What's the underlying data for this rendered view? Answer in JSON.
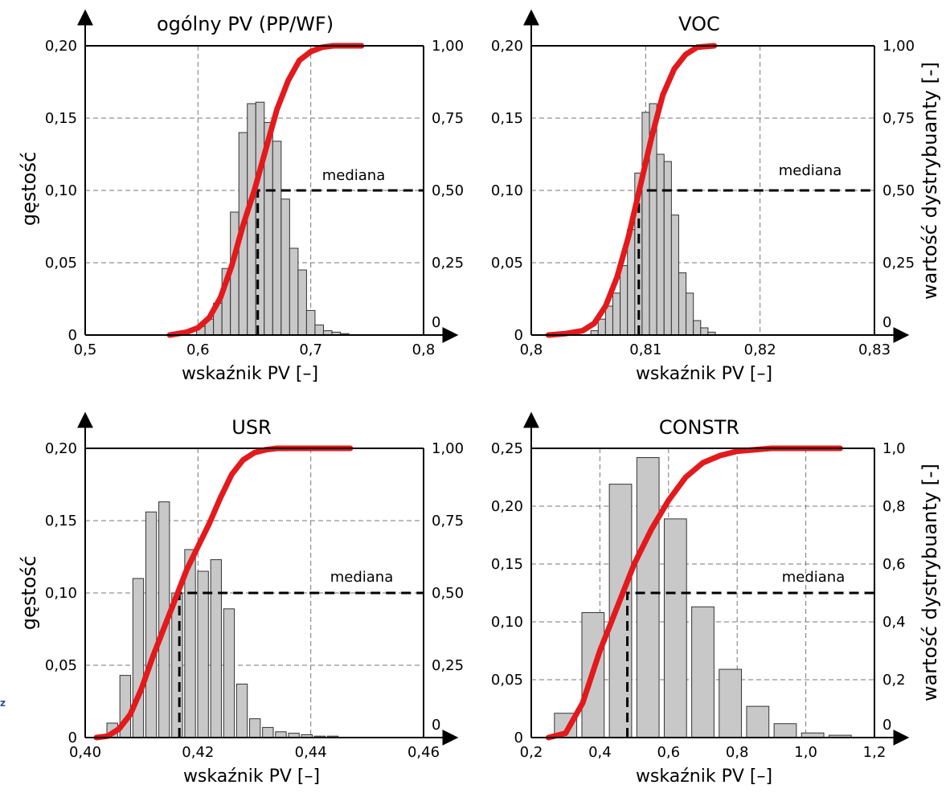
{
  "chart_data": [
    {
      "type": "bar",
      "title": "ogólny PV (PP/WF)",
      "xlabel": "wskaźnik PV [–]",
      "ylabel": "gęstość",
      "y2label": "",
      "xlim": [
        0.5,
        0.8
      ],
      "ylim": [
        0,
        0.2
      ],
      "y2lim": [
        0,
        1
      ],
      "xticks": [
        0.5,
        0.6,
        0.7,
        0.8
      ],
      "xtick_labels": [
        "0,5",
        "0,6",
        "0,7",
        "0,8"
      ],
      "yticks": [
        0,
        0.05,
        0.1,
        0.15,
        0.2
      ],
      "ytick_labels": [
        "0",
        "0,05",
        "0,10",
        "0,15",
        "0,20"
      ],
      "y2ticks": [
        0,
        0.25,
        0.5,
        0.75,
        1.0
      ],
      "y2tick_labels": [
        "0",
        "0,25",
        "0,50",
        "0,75",
        "1,00"
      ],
      "bar_width": 0.0075,
      "bar_color": "#c8c8c8",
      "bars": {
        "x": [
          0.6025,
          0.61,
          0.6175,
          0.625,
          0.6325,
          0.64,
          0.6475,
          0.655,
          0.6625,
          0.67,
          0.6775,
          0.685,
          0.6925,
          0.7,
          0.7075,
          0.715,
          0.7225,
          0.73
        ],
        "density": [
          0.006,
          0.011,
          0.022,
          0.046,
          0.085,
          0.14,
          0.16,
          0.161,
          0.147,
          0.134,
          0.094,
          0.06,
          0.045,
          0.017,
          0.007,
          0.003,
          0.002,
          0.001
        ]
      },
      "cdf_color": "#e3191c",
      "cdf": {
        "x": [
          0.575,
          0.59,
          0.6,
          0.61,
          0.62,
          0.63,
          0.64,
          0.65,
          0.66,
          0.67,
          0.68,
          0.69,
          0.7,
          0.71,
          0.72,
          0.73,
          0.745
        ],
        "y": [
          0.0,
          0.01,
          0.025,
          0.06,
          0.13,
          0.24,
          0.38,
          0.5,
          0.64,
          0.78,
          0.88,
          0.95,
          0.98,
          0.995,
          1.0,
          1.0,
          1.0
        ]
      },
      "median_value": 0.653,
      "median_label": "mediana"
    },
    {
      "type": "bar",
      "title": "VOC",
      "xlabel": "wskaźnik PV [–]",
      "ylabel": "",
      "y2label": "wartość dystrybuanty [-]",
      "xlim": [
        0.8,
        0.83
      ],
      "ylim": [
        0,
        0.2
      ],
      "y2lim": [
        0,
        1
      ],
      "xticks": [
        0.8,
        0.81,
        0.82,
        0.83
      ],
      "xtick_labels": [
        "0,8",
        "0,81",
        "0,82",
        "0,83"
      ],
      "yticks": [
        0,
        0.05,
        0.1,
        0.15,
        0.2
      ],
      "ytick_labels": [
        "0",
        "0,05",
        "0,10",
        "0,15",
        "0,20"
      ],
      "y2ticks": [
        0,
        0.25,
        0.5,
        0.75,
        1.0
      ],
      "y2tick_labels": [
        "0",
        "0,25",
        "0,50",
        "0,75",
        "1,00"
      ],
      "bar_width": 0.00064,
      "bar_color": "#c8c8c8",
      "bars": {
        "x": [
          0.80553,
          0.80617,
          0.80681,
          0.80745,
          0.80809,
          0.80873,
          0.80937,
          0.81001,
          0.81065,
          0.81129,
          0.81193,
          0.81257,
          0.81321,
          0.81385,
          0.81449,
          0.81513,
          0.81577
        ],
        "density": [
          0.003,
          0.011,
          0.02,
          0.029,
          0.048,
          0.073,
          0.112,
          0.154,
          0.16,
          0.125,
          0.12,
          0.083,
          0.043,
          0.029,
          0.01,
          0.005,
          0.002
        ]
      },
      "cdf_color": "#e3191c",
      "cdf": {
        "x": [
          0.8015,
          0.803,
          0.8045,
          0.8055,
          0.8065,
          0.8075,
          0.8085,
          0.8095,
          0.8105,
          0.8115,
          0.8125,
          0.8135,
          0.8145,
          0.816
        ],
        "y": [
          0.0,
          0.005,
          0.015,
          0.04,
          0.1,
          0.2,
          0.34,
          0.51,
          0.68,
          0.83,
          0.92,
          0.97,
          0.995,
          1.0
        ]
      },
      "median_value": 0.8094,
      "median_label": "mediana"
    },
    {
      "type": "bar",
      "title": "USR",
      "xlabel": "wskaźnik PV [–]",
      "ylabel": "gęstość",
      "y2label": "",
      "xlim": [
        0.4,
        0.46
      ],
      "ylim": [
        0,
        0.2
      ],
      "y2lim": [
        0,
        1
      ],
      "xticks": [
        0.4,
        0.42,
        0.44,
        0.46
      ],
      "xtick_labels": [
        "0,40",
        "0,42",
        "0,44",
        "0,46"
      ],
      "yticks": [
        0,
        0.05,
        0.1,
        0.15,
        0.2
      ],
      "ytick_labels": [
        "0",
        "0,05",
        "0,10",
        "0,15",
        "0,20"
      ],
      "y2ticks": [
        0,
        0.25,
        0.5,
        0.75,
        1.0
      ],
      "y2tick_labels": [
        "0",
        "0,25",
        "0,50",
        "0,75",
        "1,00"
      ],
      "bar_width": 0.0019,
      "bar_color": "#c8c8c8",
      "bars": {
        "x": [
          0.4048,
          0.4071,
          0.4094,
          0.4117,
          0.414,
          0.4163,
          0.4186,
          0.4209,
          0.4232,
          0.4255,
          0.4278,
          0.4301,
          0.4324,
          0.4347,
          0.437,
          0.4393,
          0.4416,
          0.4439
        ],
        "density": [
          0.01,
          0.043,
          0.11,
          0.156,
          0.163,
          0.1,
          0.13,
          0.115,
          0.123,
          0.089,
          0.037,
          0.013,
          0.007,
          0.004,
          0.003,
          0.002,
          0.001,
          0.001
        ]
      },
      "cdf_color": "#e3191c",
      "cdf": {
        "x": [
          0.402,
          0.404,
          0.406,
          0.408,
          0.41,
          0.412,
          0.414,
          0.416,
          0.418,
          0.42,
          0.422,
          0.424,
          0.426,
          0.428,
          0.43,
          0.432,
          0.434,
          0.438,
          0.442,
          0.447
        ],
        "y": [
          0.0,
          0.005,
          0.03,
          0.08,
          0.17,
          0.28,
          0.38,
          0.48,
          0.58,
          0.66,
          0.74,
          0.83,
          0.91,
          0.96,
          0.985,
          0.995,
          1.0,
          1.0,
          1.0,
          1.0
        ]
      },
      "median_value": 0.4167,
      "median_label": "mediana"
    },
    {
      "type": "bar",
      "title": "CONSTR",
      "xlabel": "wskaźnik PV [–]",
      "ylabel": "",
      "y2label": "wartość dystrybuanty [-]",
      "xlim": [
        0.2,
        1.2
      ],
      "ylim": [
        0,
        0.25
      ],
      "y2lim": [
        0,
        1
      ],
      "xticks": [
        0.2,
        0.4,
        0.6,
        0.8,
        1.0,
        1.2
      ],
      "xtick_labels": [
        "0,2",
        "0,4",
        "0,6",
        "0,8",
        "1,0",
        "1,2"
      ],
      "yticks": [
        0,
        0.05,
        0.1,
        0.15,
        0.2,
        0.25
      ],
      "ytick_labels": [
        "0",
        "0,05",
        "0,10",
        "0,15",
        "0,20",
        "0,25"
      ],
      "y2ticks": [
        0,
        0.2,
        0.4,
        0.6,
        0.8,
        1.0
      ],
      "y2tick_labels": [
        "0",
        "0,2",
        "0,4",
        "0,6",
        "0,8",
        "1,0"
      ],
      "bar_width": 0.065,
      "bar_color": "#c8c8c8",
      "bars": {
        "x": [
          0.3,
          0.38,
          0.46,
          0.54,
          0.62,
          0.7,
          0.78,
          0.86,
          0.94,
          1.02,
          1.1
        ],
        "density": [
          0.021,
          0.108,
          0.219,
          0.242,
          0.189,
          0.113,
          0.059,
          0.027,
          0.012,
          0.004,
          0.002
        ]
      },
      "cdf_color": "#e3191c",
      "cdf": {
        "x": [
          0.25,
          0.3,
          0.35,
          0.4,
          0.45,
          0.5,
          0.55,
          0.6,
          0.65,
          0.7,
          0.75,
          0.8,
          0.9,
          1.0,
          1.1
        ],
        "y": [
          0.0,
          0.015,
          0.12,
          0.3,
          0.45,
          0.6,
          0.72,
          0.82,
          0.9,
          0.95,
          0.975,
          0.99,
          1.0,
          1.0,
          1.0
        ]
      },
      "median_value": 0.48,
      "median_label": "mediana"
    }
  ],
  "corner_mark": "z"
}
